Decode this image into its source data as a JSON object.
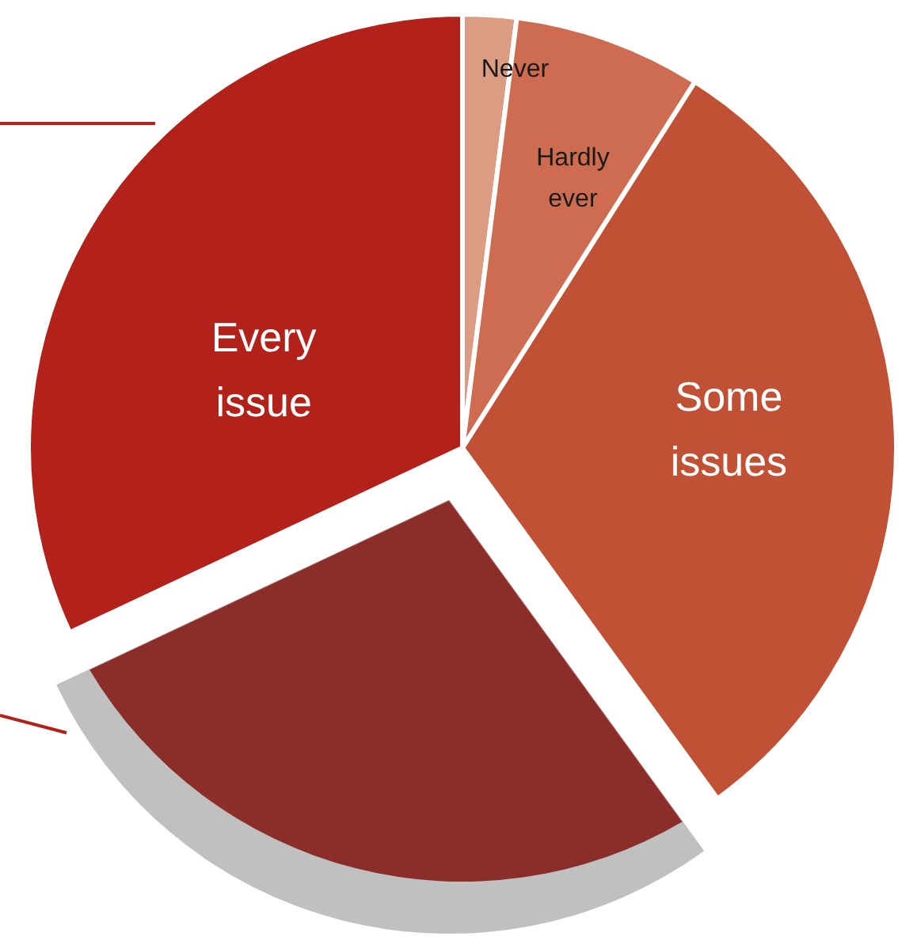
{
  "chart_data": {
    "type": "pie",
    "categories": [
      "Never",
      "Hardly ever",
      "Some issues",
      null,
      "Every issue"
    ],
    "values": [
      2,
      7,
      31,
      28,
      32
    ],
    "colors": [
      "#dc9c83",
      "#cd6c50",
      "#c05134",
      "#8b2e2a",
      "#b2221a"
    ]
  }
}
